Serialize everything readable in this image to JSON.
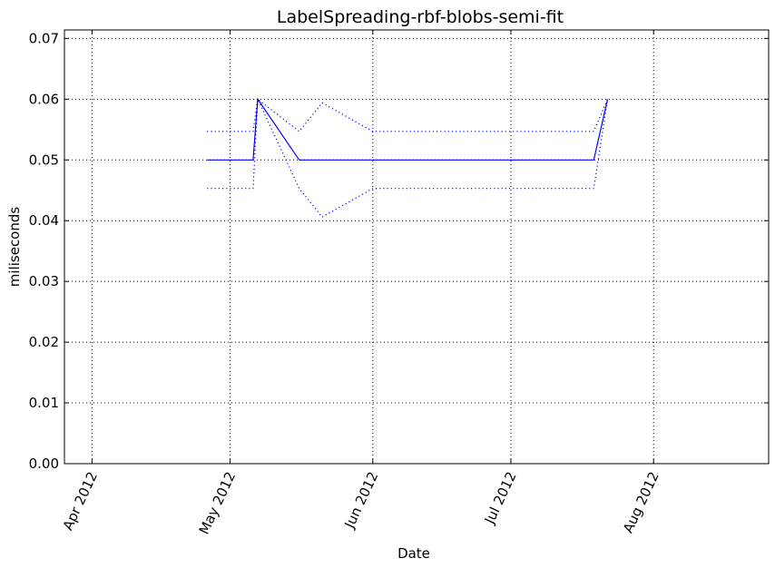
{
  "chart_data": {
    "type": "line",
    "title": "LabelSpreading-rbf-blobs-semi-fit",
    "xlabel": "Date",
    "ylabel": "miliseconds",
    "x_axis": "date",
    "xlim": [
      "2012-03-26",
      "2012-08-26"
    ],
    "ylim": [
      0.0,
      0.0714
    ],
    "grid": true,
    "xticks": [
      {
        "date": "2012-04-01",
        "label": "Apr 2012"
      },
      {
        "date": "2012-05-01",
        "label": "May 2012"
      },
      {
        "date": "2012-06-01",
        "label": "Jun 2012"
      },
      {
        "date": "2012-07-01",
        "label": "Jul 2012"
      },
      {
        "date": "2012-08-01",
        "label": "Aug 2012"
      }
    ],
    "yticks": [
      {
        "value": 0.0,
        "label": "0.00"
      },
      {
        "value": 0.01,
        "label": "0.01"
      },
      {
        "value": 0.02,
        "label": "0.02"
      },
      {
        "value": 0.03,
        "label": "0.03"
      },
      {
        "value": 0.04,
        "label": "0.04"
      },
      {
        "value": 0.05,
        "label": "0.05"
      },
      {
        "value": 0.06,
        "label": "0.06"
      },
      {
        "value": 0.07,
        "label": "0.07"
      }
    ],
    "series": [
      {
        "style": "solid",
        "color": "#0000ff",
        "points": [
          {
            "x": "2012-04-26",
            "y": 0.05
          },
          {
            "x": "2012-05-06",
            "y": 0.05
          },
          {
            "x": "2012-05-07",
            "y": 0.06
          },
          {
            "x": "2012-05-16",
            "y": 0.05
          },
          {
            "x": "2012-05-21",
            "y": 0.05
          },
          {
            "x": "2012-06-01",
            "y": 0.05
          },
          {
            "x": "2012-07-19",
            "y": 0.05
          },
          {
            "x": "2012-07-22",
            "y": 0.06
          }
        ]
      },
      {
        "style": "dotted",
        "color": "#0000ff",
        "points": [
          {
            "x": "2012-04-26",
            "y": 0.0547
          },
          {
            "x": "2012-05-06",
            "y": 0.0547
          },
          {
            "x": "2012-05-07",
            "y": 0.06
          },
          {
            "x": "2012-05-16",
            "y": 0.0547
          },
          {
            "x": "2012-05-21",
            "y": 0.0594
          },
          {
            "x": "2012-06-01",
            "y": 0.0547
          },
          {
            "x": "2012-07-19",
            "y": 0.0547
          },
          {
            "x": "2012-07-22",
            "y": 0.06
          }
        ]
      },
      {
        "style": "dotted",
        "color": "#0000ff",
        "points": [
          {
            "x": "2012-04-26",
            "y": 0.0453
          },
          {
            "x": "2012-05-06",
            "y": 0.0453
          },
          {
            "x": "2012-05-07",
            "y": 0.06
          },
          {
            "x": "2012-05-16",
            "y": 0.0453
          },
          {
            "x": "2012-05-21",
            "y": 0.0406
          },
          {
            "x": "2012-06-01",
            "y": 0.0453
          },
          {
            "x": "2012-07-19",
            "y": 0.0453
          },
          {
            "x": "2012-07-22",
            "y": 0.06
          }
        ]
      }
    ]
  }
}
